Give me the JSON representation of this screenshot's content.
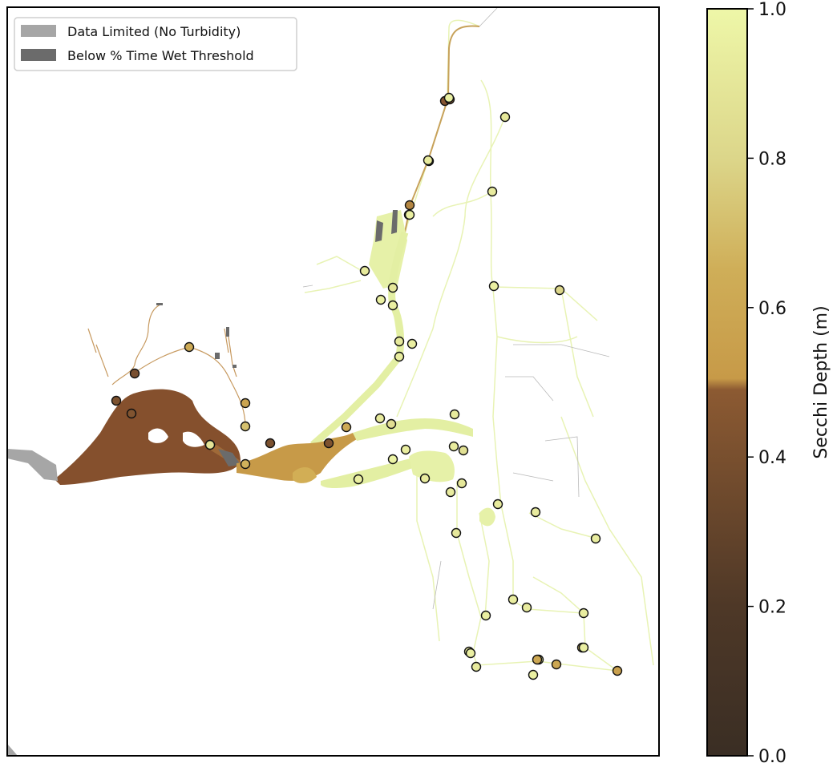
{
  "legend": {
    "items": [
      {
        "label": "Data Limited (No Turbidity)",
        "color": "#a6a6a6"
      },
      {
        "label": "Below % Time Wet Threshold",
        "color": "#6b6b6b"
      }
    ]
  },
  "colorbar": {
    "label": "Secchi Depth (m)",
    "ticks": [
      "0.0",
      "0.2",
      "0.4",
      "0.6",
      "0.8",
      "1.0"
    ],
    "range": [
      0.0,
      1.0
    ],
    "colors": {
      "low": "#3a2e24",
      "mid_low": "#8c5a32",
      "mid_high": "#c8a04c",
      "high": "#eef7a8"
    }
  },
  "map": {
    "estuary_color_west": "#85502d",
    "estuary_color_mid": "#c79a48",
    "estuary_color_east": "#e3efa3",
    "channel_color": "#e6f1ac",
    "no_data_color": "#a6a6a6",
    "below_threshold_color": "#6b6b6b",
    "station_edge": "#111111"
  },
  "stations_secchi_m": [
    0.42,
    0.62,
    0.4,
    0.44,
    0.42,
    0.58,
    0.72,
    0.66,
    0.41,
    0.42,
    0.62,
    0.95,
    0.92,
    0.85,
    0.98,
    0.94,
    0.93,
    0.93,
    0.9,
    0.93,
    0.86,
    0.92,
    0.92,
    0.95,
    0.94,
    0.46,
    0.45,
    0.52,
    0.5,
    0.95,
    0.92,
    0.9,
    0.96,
    0.95,
    0.93,
    0.9,
    0.95,
    0.92,
    0.93,
    0.94,
    0.91,
    0.94,
    0.93,
    0.95,
    0.94,
    0.93,
    0.95,
    0.92,
    0.96,
    0.95,
    0.6,
    0.7,
    0.55,
    0.8,
    0.6,
    0.95,
    0.96,
    0.92,
    0.95,
    0.88
  ]
}
